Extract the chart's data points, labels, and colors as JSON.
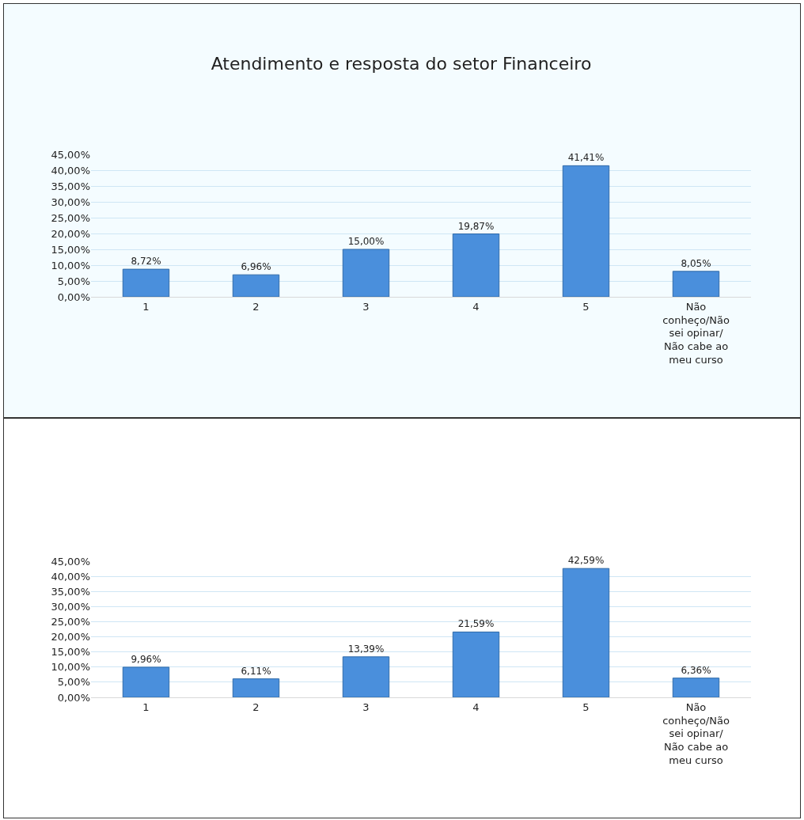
{
  "chart_data": [
    {
      "type": "bar",
      "title": "Atendimento e resposta do setor Financeiro",
      "categories": [
        "1",
        "2",
        "3",
        "4",
        "5",
        "Não conheço/Não sei opinar/ Não cabe ao meu curso"
      ],
      "values": [
        8.72,
        6.96,
        15.0,
        19.87,
        41.41,
        8.05
      ],
      "value_labels": [
        "8,72%",
        "6,96%",
        "15,00%",
        "19,87%",
        "41,41%",
        "8,05%"
      ],
      "color": "#4a8fdc",
      "ylim": [
        0,
        45
      ],
      "yticks": [
        {
          "value": 0,
          "label": "0,00%"
        },
        {
          "value": 5,
          "label": "5,00%"
        },
        {
          "value": 10,
          "label": "10,00%"
        },
        {
          "value": 15,
          "label": "15,00%"
        },
        {
          "value": 20,
          "label": "20,00%"
        },
        {
          "value": 25,
          "label": "25,00%"
        },
        {
          "value": 30,
          "label": "30,00%"
        },
        {
          "value": 35,
          "label": "35,00%"
        },
        {
          "value": 40,
          "label": "40,00%"
        },
        {
          "value": 45,
          "label": "45,00%"
        }
      ],
      "grid": "y"
    },
    {
      "type": "bar",
      "categories": [
        "1",
        "2",
        "3",
        "4",
        "5",
        "Não conheço/Não sei opinar/ Não cabe ao meu curso"
      ],
      "values": [
        9.96,
        6.11,
        13.39,
        21.59,
        42.59,
        6.36
      ],
      "value_labels": [
        "9,96%",
        "6,11%",
        "13,39%",
        "21,59%",
        "42,59%",
        "6,36%"
      ],
      "color": "#4a8fdc",
      "ylim": [
        0,
        45
      ],
      "yticks": [
        {
          "value": 0,
          "label": "0,00%"
        },
        {
          "value": 5,
          "label": "5,00%"
        },
        {
          "value": 10,
          "label": "10,00%"
        },
        {
          "value": 15,
          "label": "15,00%"
        },
        {
          "value": 20,
          "label": "20,00%"
        },
        {
          "value": 25,
          "label": "25,00%"
        },
        {
          "value": 30,
          "label": "30,00%"
        },
        {
          "value": 35,
          "label": "35,00%"
        },
        {
          "value": 40,
          "label": "40,00%"
        },
        {
          "value": 45,
          "label": "45,00%"
        }
      ],
      "grid": "y"
    }
  ]
}
